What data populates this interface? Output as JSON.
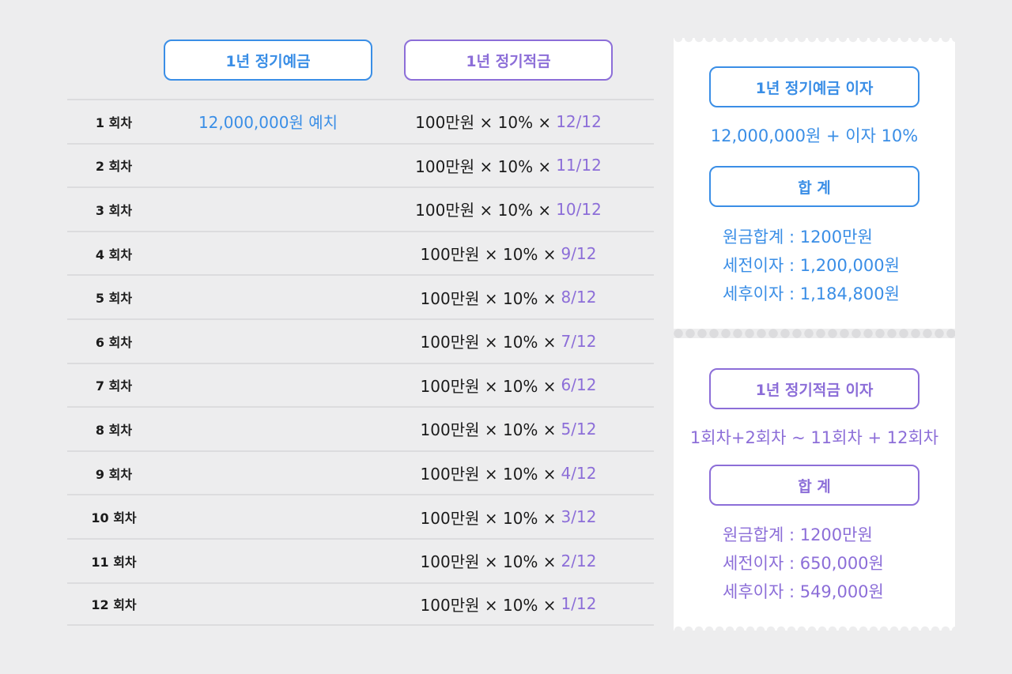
{
  "headers": {
    "deposit": "1년 정기예금",
    "savings": "1년 정기적금"
  },
  "rows": [
    {
      "round": "1 회차",
      "deposit": "12,000,000원 예치",
      "formula": "100만원 × 10% ×",
      "fraction": "12/12"
    },
    {
      "round": "2 회차",
      "deposit": "",
      "formula": "100만원 × 10% ×",
      "fraction": "11/12"
    },
    {
      "round": "3 회차",
      "deposit": "",
      "formula": "100만원 × 10% ×",
      "fraction": "10/12"
    },
    {
      "round": "4 회차",
      "deposit": "",
      "formula": "100만원 × 10% ×",
      "fraction": "9/12"
    },
    {
      "round": "5 회차",
      "deposit": "",
      "formula": "100만원 × 10% ×",
      "fraction": "8/12"
    },
    {
      "round": "6 회차",
      "deposit": "",
      "formula": "100만원 × 10% ×",
      "fraction": "7/12"
    },
    {
      "round": "7 회차",
      "deposit": "",
      "formula": "100만원 × 10% ×",
      "fraction": "6/12"
    },
    {
      "round": "8 회차",
      "deposit": "",
      "formula": "100만원 × 10% ×",
      "fraction": "5/12"
    },
    {
      "round": "9 회차",
      "deposit": "",
      "formula": "100만원 × 10% ×",
      "fraction": "4/12"
    },
    {
      "round": "10 회차",
      "deposit": "",
      "formula": "100만원 × 10% ×",
      "fraction": "3/12"
    },
    {
      "round": "11 회차",
      "deposit": "",
      "formula": "100만원 × 10% ×",
      "fraction": "2/12"
    },
    {
      "round": "12 회차",
      "deposit": "",
      "formula": "100만원 × 10% ×",
      "fraction": "1/12"
    }
  ],
  "receipt": {
    "deposit": {
      "title": "1년 정기예금 이자",
      "formula": "12,000,000원 + 이자 10%",
      "total_label": "합 계",
      "principal": "원금합계 : 1200만원",
      "pretax": "세전이자 : 1,200,000원",
      "aftertax": "세후이자 : 1,184,800원"
    },
    "savings": {
      "title": "1년 정기적금 이자",
      "formula": "1회차+2회차 ~ 11회차 + 12회차",
      "total_label": "합 계",
      "principal": "원금합계 : 1200만원",
      "pretax": "세전이자 : 650,000원",
      "aftertax": "세후이자 : 549,000원"
    }
  },
  "colors": {
    "deposit_accent": "#3a8ee6",
    "savings_accent": "#8c6ed8",
    "background": "#ededee"
  }
}
